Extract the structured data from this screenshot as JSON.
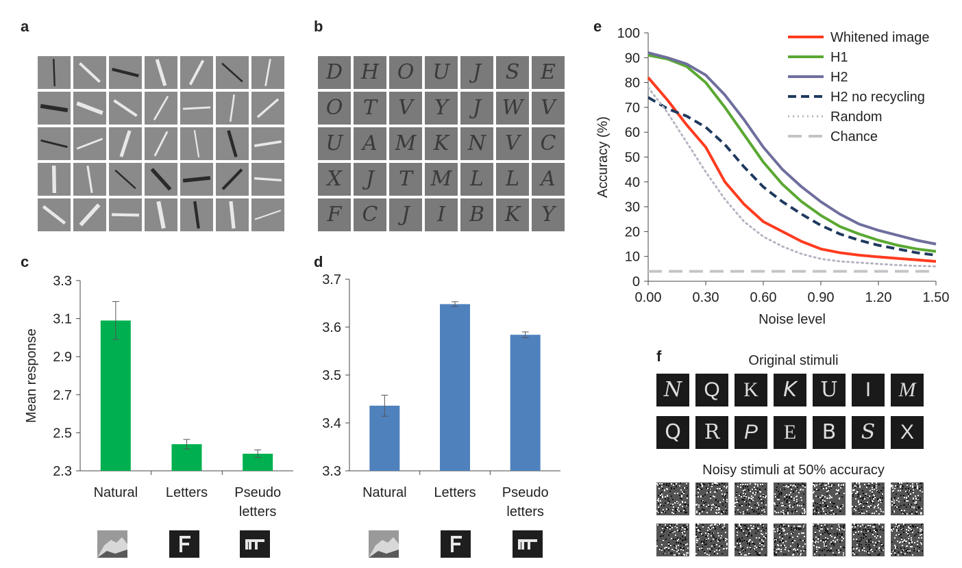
{
  "panels": {
    "a": "a",
    "b": "b",
    "c": "c",
    "d": "d",
    "e": "e",
    "f": "f"
  },
  "colors": {
    "green": "#00b050",
    "blue": "#4f81bd",
    "red": "#ff3b1f",
    "h1": "#5aa832",
    "h2": "#6e6e9e",
    "navy": "#1f3a5f",
    "random": "#b5b5c2",
    "chance": "#c4c4c4"
  },
  "panel_b_letters": [
    "D",
    "H",
    "O",
    "U",
    "J",
    "S",
    "E",
    "O",
    "T",
    "V",
    "Y",
    "J",
    "W",
    "V",
    "U",
    "A",
    "M",
    "K",
    "N",
    "V",
    "C",
    "X",
    "J",
    "T",
    "M",
    "L",
    "L",
    "A",
    "F",
    "C",
    "J",
    "I",
    "B",
    "K",
    "Y"
  ],
  "panel_f": {
    "original_title": "Original stimuli",
    "noisy_title": "Noisy stimuli at 50% accuracy",
    "original_row1": [
      "N",
      "Q",
      "K",
      "K",
      "U",
      "I",
      "M"
    ],
    "original_row2": [
      "Q",
      "R",
      "P",
      "E",
      "B",
      "S",
      "X"
    ]
  },
  "category_icons": [
    "natural-image-icon",
    "letter-f-icon",
    "pseudo-letter-icon"
  ],
  "chart_data": [
    {
      "id": "c",
      "type": "bar",
      "categories": [
        "Natural",
        "Letters",
        "Pseudo letters"
      ],
      "category_lines": [
        [
          "Natural"
        ],
        [
          "Letters"
        ],
        [
          "Pseudo",
          "letters"
        ]
      ],
      "values": [
        3.09,
        2.44,
        2.39
      ],
      "errors": [
        0.1,
        0.025,
        0.02
      ],
      "ylabel": "Mean response",
      "ylim": [
        2.3,
        3.3
      ],
      "yticks": [
        2.3,
        2.5,
        2.7,
        2.9,
        3.1,
        3.3
      ],
      "ytick_labels": [
        "2.3",
        "2.5",
        "2.7",
        "2.9",
        "3.1",
        "3.3"
      ]
    },
    {
      "id": "d",
      "type": "bar",
      "categories": [
        "Natural",
        "Letters",
        "Pseudo letters"
      ],
      "category_lines": [
        [
          "Natural"
        ],
        [
          "Letters"
        ],
        [
          "Pseudo",
          "letters"
        ]
      ],
      "values": [
        3.436,
        3.648,
        3.584
      ],
      "errors": [
        0.022,
        0.005,
        0.006
      ],
      "ylabel": "",
      "ylim": [
        3.3,
        3.7
      ],
      "yticks": [
        3.3,
        3.4,
        3.5,
        3.6,
        3.7
      ],
      "ytick_labels": [
        "3.3",
        "3.4",
        "3.5",
        "3.6",
        "3.7"
      ]
    },
    {
      "id": "e",
      "type": "line",
      "xlabel": "Noise level",
      "ylabel": "Accuracy (%)",
      "xlim": [
        0,
        1.5
      ],
      "ylim": [
        0,
        100
      ],
      "xticks": [
        0,
        0.3,
        0.6,
        0.9,
        1.2,
        1.5
      ],
      "xtick_labels": [
        "0.00",
        "0.30",
        "0.60",
        "0.90",
        "1.20",
        "1.50"
      ],
      "yticks": [
        0,
        10,
        20,
        30,
        40,
        50,
        60,
        70,
        80,
        90,
        100
      ],
      "ytick_labels": [
        "0",
        "10",
        "20",
        "30",
        "40",
        "50",
        "60",
        "70",
        "80",
        "90",
        "100"
      ],
      "x": [
        0,
        0.1,
        0.2,
        0.3,
        0.4,
        0.5,
        0.6,
        0.7,
        0.8,
        0.9,
        1.0,
        1.1,
        1.2,
        1.3,
        1.4,
        1.5
      ],
      "series": [
        {
          "name": "Whitened image",
          "style": "solid",
          "color": "#ff3b1f",
          "values": [
            82,
            73,
            63,
            54,
            40,
            31,
            24,
            20,
            16,
            13,
            11.5,
            10.5,
            9.8,
            9.2,
            8.6,
            8
          ]
        },
        {
          "name": "H1",
          "style": "solid",
          "color": "#5aa832",
          "values": [
            91,
            89.5,
            86.5,
            80,
            70,
            59,
            48,
            39,
            32,
            26.5,
            22,
            19,
            16.5,
            14.5,
            13,
            12
          ]
        },
        {
          "name": "H2",
          "style": "solid",
          "color": "#6e6e9e",
          "values": [
            92,
            90,
            87.5,
            83,
            75,
            65,
            54,
            45,
            38,
            32,
            27,
            23,
            20.5,
            18.5,
            16.5,
            15
          ]
        },
        {
          "name": "H2 no recycling",
          "style": "dashed",
          "color": "#1f3a5f",
          "values": [
            74,
            69.5,
            66.5,
            62,
            55,
            46,
            38,
            32,
            27,
            22.5,
            19,
            16.5,
            14.5,
            13,
            11.5,
            10.5
          ]
        },
        {
          "name": "Random",
          "style": "dotted",
          "color": "#b5b5c2",
          "values": [
            78,
            68,
            56,
            44,
            33,
            24,
            18,
            14,
            11,
            9,
            8,
            7.5,
            7,
            6.5,
            6.2,
            6
          ]
        },
        {
          "name": "Chance",
          "style": "longdash",
          "color": "#c4c4c4",
          "values": [
            4,
            4,
            4,
            4,
            4,
            4,
            4,
            4,
            4,
            4,
            4,
            4,
            4,
            4,
            4,
            4
          ]
        }
      ]
    }
  ]
}
